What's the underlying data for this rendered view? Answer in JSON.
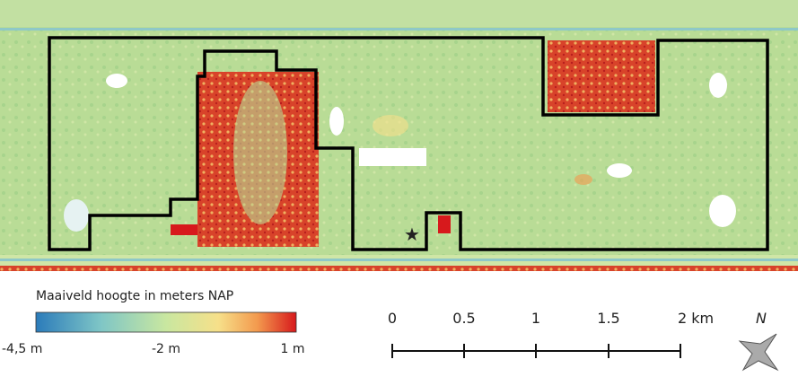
{
  "legend": {
    "title": "Maaiveld hoogte in meters NAP",
    "labels": [
      "-4,5 m",
      "-2 m",
      "1 m"
    ]
  },
  "scale_bar": {
    "labels": [
      "0",
      "0.5",
      "1",
      "1.5",
      "2 km"
    ]
  },
  "north_arrow": {
    "label": "N"
  }
}
